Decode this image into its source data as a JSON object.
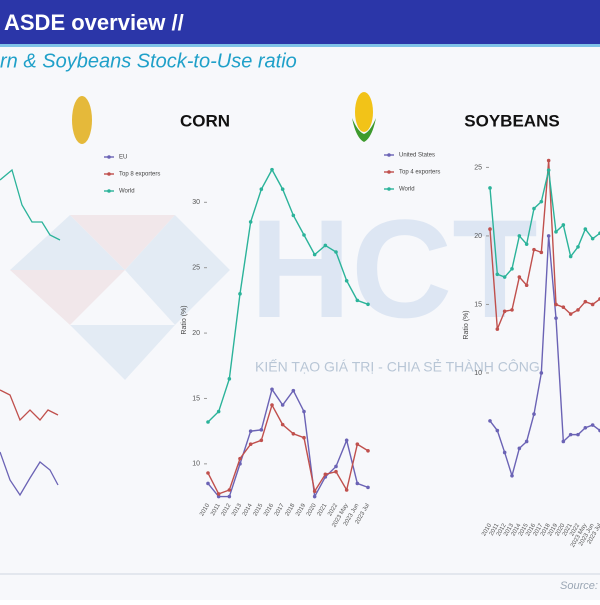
{
  "header": {
    "title": "ASDE overview //",
    "subtitle": "rn & Soybeans Stock-to-Use ratio"
  },
  "watermark": {
    "logo": "HCT",
    "slogan": "KIẾN TẠO GIÁ TRỊ - CHIA SẺ THÀNH CÔNG"
  },
  "source": "Source:",
  "chart_data": [
    {
      "type": "line",
      "title": "CORN",
      "ylabel": "Ratio (%)",
      "categories": [
        "2010",
        "2011",
        "2012",
        "2013",
        "2014",
        "2015",
        "2016",
        "2017",
        "2018",
        "2019",
        "2020",
        "2021",
        "2022",
        "2023 May",
        "2023 Jun",
        "2023 Jul"
      ],
      "series": [
        {
          "name": "EU",
          "color": "#6b63b5",
          "values": [
            8.5,
            7.5,
            7.5,
            10.0,
            12.5,
            12.6,
            15.7,
            14.5,
            15.6,
            14.0,
            7.5,
            9.0,
            9.8,
            11.8,
            8.5,
            8.2
          ]
        },
        {
          "name": "Top 8 exporters",
          "color": "#c0504d",
          "values": [
            9.3,
            7.7,
            8.0,
            10.4,
            11.5,
            11.8,
            14.5,
            13.0,
            12.3,
            12.0,
            7.9,
            9.2,
            9.4,
            8.0,
            11.5,
            11.0
          ]
        },
        {
          "name": "World",
          "color": "#2bb39a",
          "values": [
            13.2,
            14.0,
            16.5,
            23.0,
            28.5,
            31.0,
            32.5,
            31.0,
            29.0,
            27.5,
            26.0,
            26.7,
            26.2,
            24.0,
            22.5,
            22.2
          ]
        }
      ],
      "ylim": [
        8,
        34
      ],
      "yticks": [
        10,
        15,
        20,
        25,
        30
      ],
      "legend": "upper left"
    },
    {
      "type": "line",
      "title": "SOYBEANS",
      "ylabel": "Ratio (%)",
      "categories": [
        "2010",
        "2011",
        "2012",
        "2013",
        "2014",
        "2015",
        "2016",
        "2017",
        "2018",
        "2019",
        "2020",
        "2021",
        "2022",
        "2023 May",
        "2023 Jun",
        "2023 Jul"
      ],
      "series": [
        {
          "name": "United States",
          "color": "#6b63b5",
          "values": [
            6.5,
            5.8,
            4.2,
            2.5,
            4.5,
            5.0,
            7.0,
            10.0,
            20.0,
            14.0,
            5.0,
            5.5,
            5.5,
            6.0,
            6.2,
            5.8
          ]
        },
        {
          "name": "Top 4 exporters",
          "color": "#c0504d",
          "values": [
            20.5,
            13.2,
            14.5,
            14.6,
            17.0,
            16.4,
            19.0,
            18.8,
            25.5,
            15.0,
            14.8,
            14.3,
            14.6,
            15.2,
            15.0,
            15.4
          ]
        },
        {
          "name": "World",
          "color": "#2bb39a",
          "values": [
            23.5,
            17.2,
            17.0,
            17.6,
            20.0,
            19.4,
            22.0,
            22.5,
            24.8,
            20.3,
            20.8,
            18.5,
            19.2,
            20.5,
            19.8,
            20.2
          ]
        }
      ],
      "ylim": [
        0,
        27
      ],
      "yticks": [
        10,
        15,
        20,
        25
      ],
      "legend": "upper left"
    }
  ]
}
